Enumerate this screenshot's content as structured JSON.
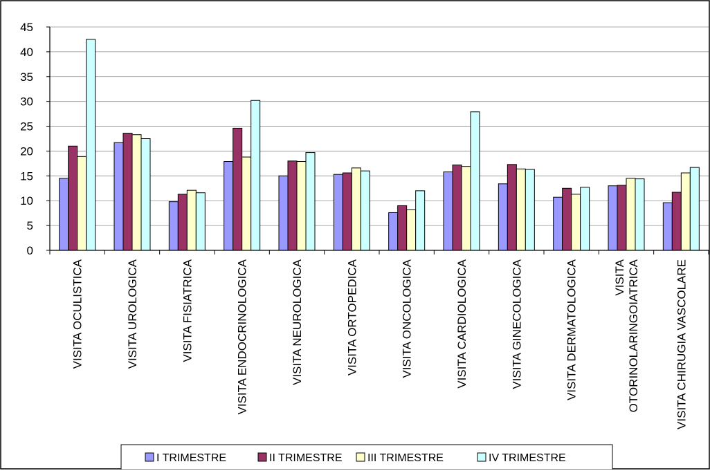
{
  "chart_data": {
    "type": "bar",
    "title": "",
    "xlabel": "",
    "ylabel": "",
    "ylim": [
      0,
      45
    ],
    "yticks": [
      0,
      5,
      10,
      15,
      20,
      25,
      30,
      35,
      40,
      45
    ],
    "grid": true,
    "legend": "bottom",
    "categories": [
      [
        "VISITA OCULISTICA"
      ],
      [
        "VISITA UROLOGICA"
      ],
      [
        "VISITA FISIATRICA"
      ],
      [
        "VISITA ENDOCRINOLOGICA"
      ],
      [
        "VISITA NEUROLOGICA"
      ],
      [
        "VISITA ORTOPEDICA"
      ],
      [
        "VISITA ONCOLOGICA"
      ],
      [
        "VISITA CARDIOLOGICA"
      ],
      [
        "VISITA GINECOLOGICA"
      ],
      [
        "VISITA DERMATOLOGICA"
      ],
      [
        "VISITA",
        "OTORINOLARINGOIATRICA"
      ],
      [
        "VISITA CHIRUGIA VASCOLARE"
      ]
    ],
    "series": [
      {
        "name": "I TRIMESTRE",
        "color": "#9999ff",
        "values": [
          14.5,
          21.7,
          9.8,
          17.9,
          15.0,
          15.3,
          7.6,
          15.8,
          13.4,
          10.7,
          13.0,
          9.6
        ]
      },
      {
        "name": "II TRIMESTRE",
        "color": "#993366",
        "values": [
          21.0,
          23.6,
          11.3,
          24.6,
          18.0,
          15.6,
          9.0,
          17.2,
          17.3,
          12.5,
          13.1,
          11.7
        ]
      },
      {
        "name": "III TRIMESTRE",
        "color": "#ffffcc",
        "values": [
          18.9,
          23.3,
          12.1,
          18.8,
          17.9,
          16.6,
          8.2,
          16.9,
          16.4,
          11.3,
          14.5,
          15.6
        ]
      },
      {
        "name": "IV TRIMESTRE",
        "color": "#ccffff",
        "values": [
          42.5,
          22.5,
          11.6,
          30.2,
          19.7,
          16.0,
          12.0,
          27.9,
          16.3,
          12.7,
          14.4,
          16.7
        ]
      }
    ]
  }
}
